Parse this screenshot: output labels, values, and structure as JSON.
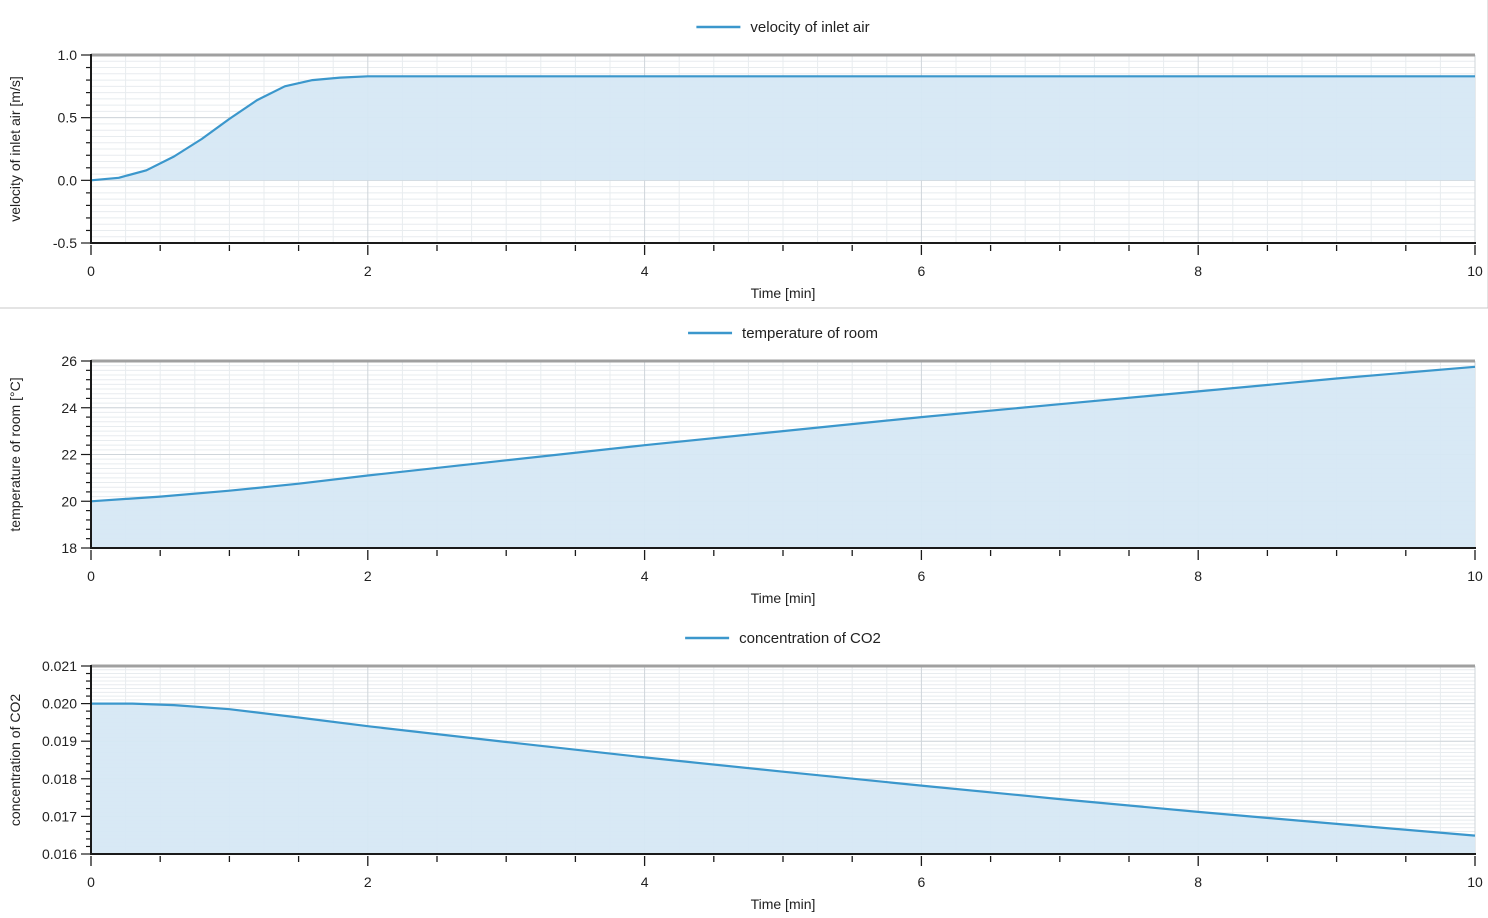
{
  "colors": {
    "line": "#3b97cc",
    "fill": "#d6e8f4",
    "axis": "#1a1a1a",
    "frame": "#a0a0a0",
    "grid_major": "#cfd5da",
    "grid_minor": "#e8ecef",
    "divider": "#c8c8c8"
  },
  "chart_data": [
    {
      "type": "area",
      "legend": "velocity of inlet air",
      "legend_placement": "top-center",
      "xlabel": "Time [min]",
      "ylabel": "velocity of inlet air [m/s]",
      "xlim": [
        0,
        10
      ],
      "ylim": [
        -0.5,
        1.0
      ],
      "xticks": [
        0,
        2,
        4,
        6,
        8,
        10
      ],
      "yticks": [
        -0.5,
        0.0,
        0.5,
        1.0
      ],
      "ytick_labels": [
        "-0.5",
        "0.0",
        "0.5",
        "1.0"
      ],
      "grid": true,
      "fill_baseline": 0,
      "series": [
        {
          "x": [
            0,
            0.2,
            0.4,
            0.6,
            0.8,
            1.0,
            1.2,
            1.4,
            1.6,
            1.8,
            2.0,
            3.0,
            4.0,
            5.0,
            6.0,
            7.0,
            8.0,
            9.0,
            10.0
          ],
          "y": [
            0.0,
            0.02,
            0.08,
            0.19,
            0.33,
            0.49,
            0.64,
            0.75,
            0.8,
            0.82,
            0.83,
            0.83,
            0.83,
            0.83,
            0.83,
            0.83,
            0.83,
            0.83,
            0.83
          ]
        }
      ]
    },
    {
      "type": "area",
      "legend": "temperature of room",
      "legend_placement": "top-center",
      "xlabel": "Time [min]",
      "ylabel": "temperature of room [°C]",
      "xlim": [
        0,
        10
      ],
      "ylim": [
        18,
        26
      ],
      "xticks": [
        0,
        2,
        4,
        6,
        8,
        10
      ],
      "yticks": [
        18,
        20,
        22,
        24,
        26
      ],
      "ytick_labels": [
        "18",
        "20",
        "22",
        "24",
        "26"
      ],
      "grid": true,
      "fill_baseline": 18,
      "series": [
        {
          "x": [
            0,
            0.5,
            1.0,
            1.5,
            2.0,
            3.0,
            4.0,
            5.0,
            6.0,
            7.0,
            8.0,
            9.0,
            10.0
          ],
          "y": [
            20.0,
            20.2,
            20.45,
            20.75,
            21.1,
            21.75,
            22.4,
            23.0,
            23.6,
            24.15,
            24.7,
            25.25,
            25.75
          ]
        }
      ]
    },
    {
      "type": "area",
      "legend": "concentration of CO2",
      "legend_placement": "top-center",
      "xlabel": "Time [min]",
      "ylabel": "concentration of CO2",
      "xlim": [
        0,
        10
      ],
      "ylim": [
        0.016,
        0.021
      ],
      "xticks": [
        0,
        2,
        4,
        6,
        8,
        10
      ],
      "yticks": [
        0.016,
        0.017,
        0.018,
        0.019,
        0.02,
        0.021
      ],
      "ytick_labels": [
        "0.016",
        "0.017",
        "0.018",
        "0.019",
        "0.020",
        "0.021"
      ],
      "grid": true,
      "fill_baseline": 0.016,
      "series": [
        {
          "x": [
            0,
            0.3,
            0.6,
            1.0,
            1.5,
            2.0,
            3.0,
            4.0,
            5.0,
            6.0,
            7.0,
            8.0,
            9.0,
            10.0
          ],
          "y": [
            0.02,
            0.02,
            0.01996,
            0.01985,
            0.01963,
            0.0194,
            0.01898,
            0.01857,
            0.01819,
            0.01782,
            0.01746,
            0.01712,
            0.0168,
            0.01649
          ]
        }
      ]
    }
  ]
}
